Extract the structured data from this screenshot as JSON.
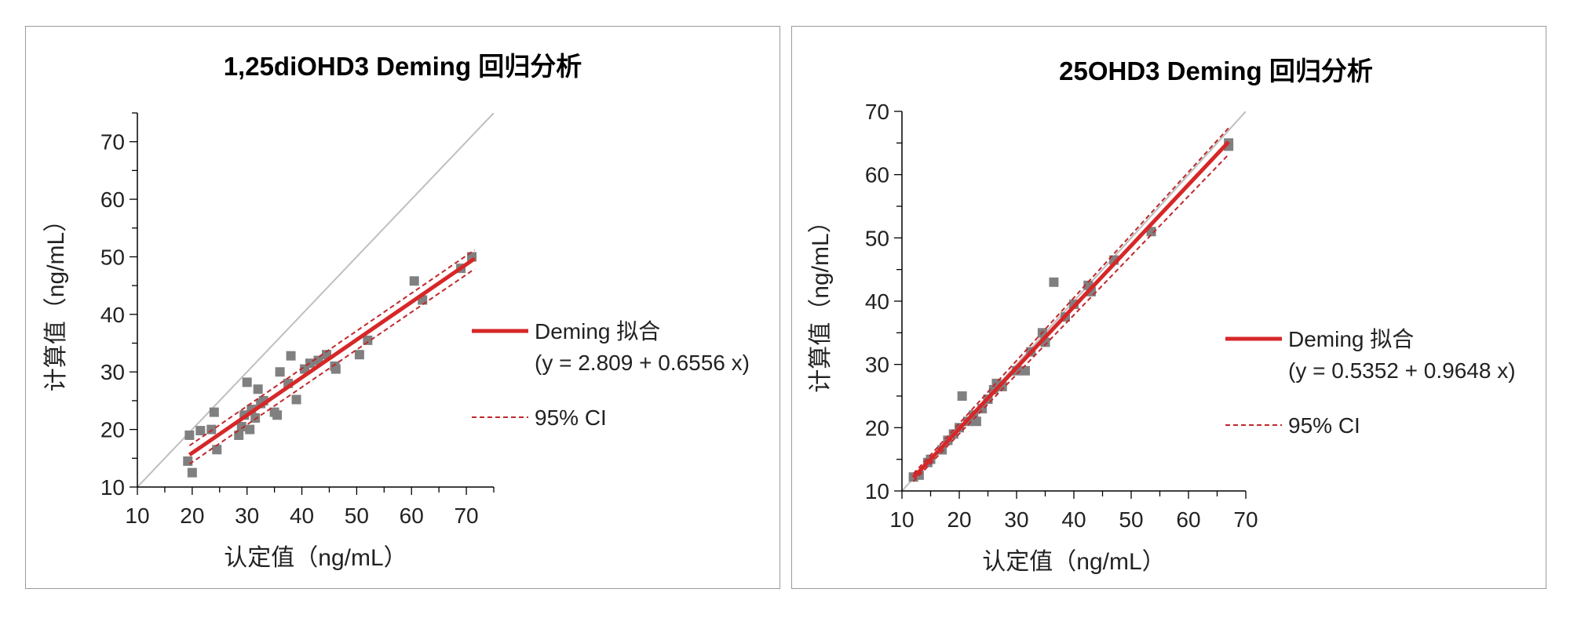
{
  "colors": {
    "fit": "#d62728",
    "ci": "#c0282d",
    "identity": "#bfbfbf",
    "points": "#808080",
    "axis": "#000000"
  },
  "chart_data": [
    {
      "type": "scatter",
      "title": "1,25diOHD3 Deming 回归分析",
      "xlabel": "认定值（ng/mL）",
      "ylabel": "计算值（ng/mL）",
      "xlim": [
        10,
        75
      ],
      "ylim": [
        10,
        75
      ],
      "xticks": [
        10,
        20,
        30,
        40,
        50,
        60,
        70
      ],
      "yticks": [
        10,
        20,
        30,
        40,
        50,
        60,
        70
      ],
      "identity_line": true,
      "legend_placement": "right",
      "fit": {
        "label": "Deming 拟合",
        "equation": "(y = 2.809 + 0.6556 x)",
        "intercept": 2.809,
        "slope": 0.6556
      },
      "ci": {
        "label": "95% CI",
        "upper_offset": [
          1.6,
          1.5
        ],
        "lower_offset": [
          -1.6,
          -1.8
        ]
      },
      "x_range_fit": [
        19.5,
        71.5
      ],
      "points": [
        [
          19.2,
          14.5
        ],
        [
          19.5,
          19.0
        ],
        [
          20.0,
          12.5
        ],
        [
          21.5,
          19.8
        ],
        [
          23.5,
          20.0
        ],
        [
          24.0,
          23.0
        ],
        [
          24.5,
          16.5
        ],
        [
          28.5,
          19.0
        ],
        [
          29.0,
          20.5
        ],
        [
          29.5,
          22.5
        ],
        [
          30.0,
          28.2
        ],
        [
          30.5,
          20.0
        ],
        [
          30.8,
          23.5
        ],
        [
          31.5,
          22.0
        ],
        [
          32.0,
          27.0
        ],
        [
          32.5,
          24.5
        ],
        [
          33.0,
          25.0
        ],
        [
          35.0,
          23.0
        ],
        [
          35.5,
          22.5
        ],
        [
          36.0,
          30.0
        ],
        [
          37.5,
          28.0
        ],
        [
          38.0,
          32.8
        ],
        [
          39.0,
          25.2
        ],
        [
          40.5,
          30.5
        ],
        [
          41.5,
          31.5
        ],
        [
          43.0,
          32.0
        ],
        [
          44.5,
          33.0
        ],
        [
          46.0,
          31.0
        ],
        [
          46.2,
          30.5
        ],
        [
          50.5,
          33.0
        ],
        [
          52.0,
          35.5
        ],
        [
          60.5,
          45.8
        ],
        [
          62.0,
          42.5
        ],
        [
          69.0,
          48.0
        ],
        [
          71.0,
          50.0
        ]
      ]
    },
    {
      "type": "scatter",
      "title": "25OHD3 Deming 回归分析",
      "xlabel": "认定值（ng/mL）",
      "ylabel": "计算值（ng/mL）",
      "xlim": [
        10,
        70
      ],
      "ylim": [
        10,
        70
      ],
      "xticks": [
        10,
        20,
        30,
        40,
        50,
        60,
        70
      ],
      "yticks": [
        10,
        20,
        30,
        40,
        50,
        60,
        70
      ],
      "identity_line": true,
      "legend_placement": "right",
      "fit": {
        "label": "Deming 拟合",
        "equation": "(y = 0.5352 + 0.9648 x)",
        "intercept": 0.5352,
        "slope": 0.9648
      },
      "ci": {
        "label": "95% CI",
        "upper_offset": [
          0.6,
          2.2
        ],
        "lower_offset": [
          -0.6,
          -2.0
        ]
      },
      "x_range_fit": [
        12,
        67
      ],
      "points": [
        [
          12.0,
          12.2
        ],
        [
          13.0,
          12.5
        ],
        [
          14.5,
          14.5
        ],
        [
          15.0,
          15.0
        ],
        [
          17.0,
          16.5
        ],
        [
          18.0,
          18.0
        ],
        [
          19.0,
          19.0
        ],
        [
          20.0,
          20.0
        ],
        [
          20.5,
          25.0
        ],
        [
          21.5,
          21.0
        ],
        [
          22.5,
          22.0
        ],
        [
          23.0,
          21.0
        ],
        [
          24.0,
          23.0
        ],
        [
          25.0,
          24.5
        ],
        [
          26.0,
          26.0
        ],
        [
          26.5,
          27.0
        ],
        [
          27.5,
          26.5
        ],
        [
          30.0,
          29.0
        ],
        [
          31.5,
          29.0
        ],
        [
          32.5,
          32.0
        ],
        [
          34.5,
          35.0
        ],
        [
          35.0,
          33.5
        ],
        [
          36.5,
          43.0
        ],
        [
          38.5,
          37.5
        ],
        [
          40.0,
          39.5
        ],
        [
          42.5,
          42.5
        ],
        [
          43.0,
          41.5
        ],
        [
          47.0,
          46.5
        ],
        [
          53.5,
          51.0
        ],
        [
          67.0,
          64.5
        ],
        [
          67.0,
          65.0
        ]
      ]
    }
  ]
}
